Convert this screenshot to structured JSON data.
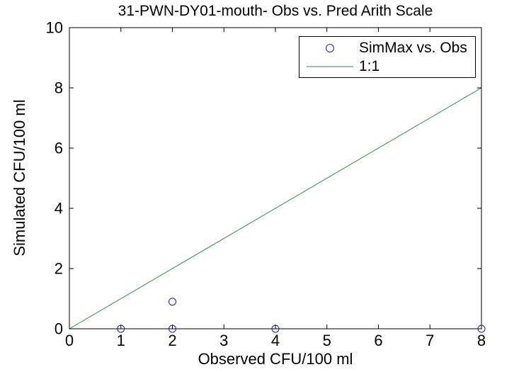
{
  "chart_data": {
    "type": "scatter",
    "title": "31-PWN-DY01-mouth- Obs vs. Pred Arith Scale",
    "xlabel": "Observed CFU/100 ml",
    "ylabel": "Simulated CFU/100 ml",
    "xlim": [
      0,
      8
    ],
    "ylim": [
      0,
      10
    ],
    "xticks": [
      0,
      1,
      2,
      3,
      4,
      5,
      6,
      7,
      8
    ],
    "yticks": [
      0,
      2,
      4,
      6,
      8,
      10
    ],
    "grid": false,
    "legend_position": "top-right",
    "axis_color": "#000000",
    "background_color": "#ffffff",
    "series": [
      {
        "name": "SimMax vs. Obs",
        "type": "scatter",
        "marker": "circle-open",
        "color": "#20209A",
        "points": [
          [
            1,
            0
          ],
          [
            2,
            0
          ],
          [
            2,
            0.9
          ],
          [
            4,
            0
          ],
          [
            8,
            0
          ]
        ]
      },
      {
        "name": "1:1",
        "type": "line",
        "color": "#2E8B57",
        "points": [
          [
            0,
            0
          ],
          [
            8,
            8
          ]
        ]
      }
    ]
  }
}
